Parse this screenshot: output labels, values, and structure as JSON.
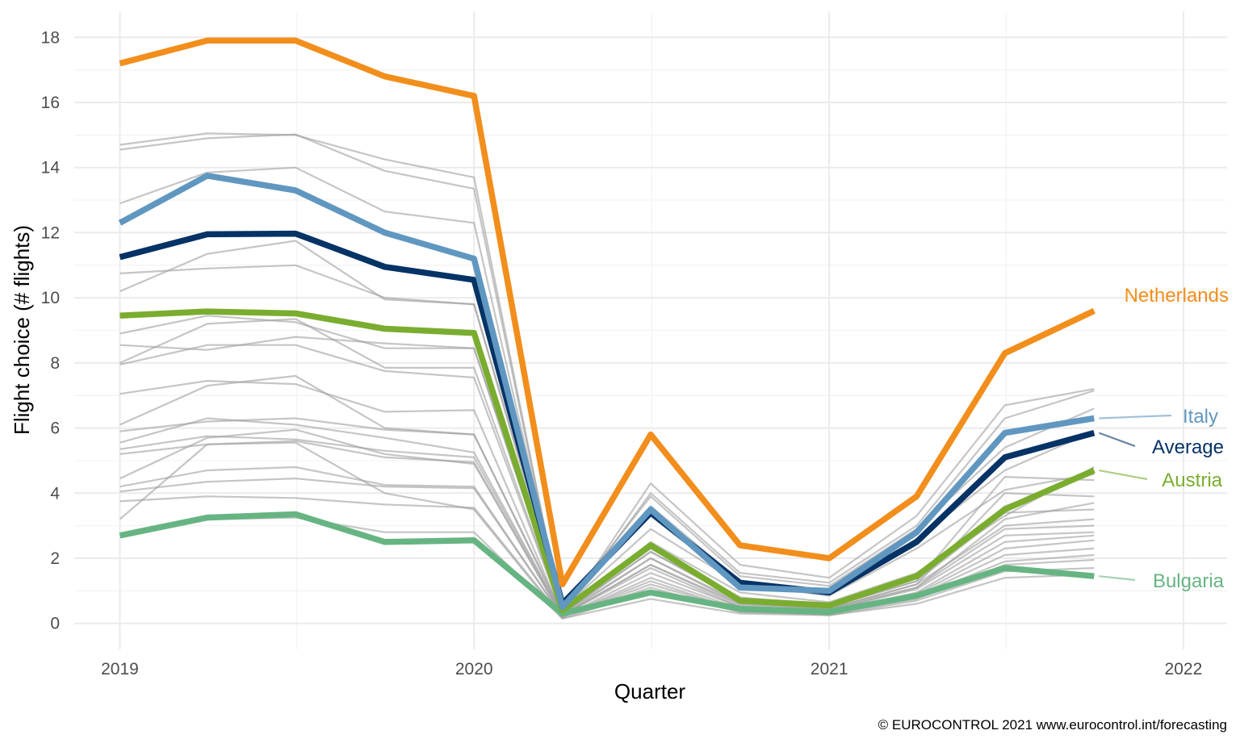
{
  "chart_data": {
    "type": "line",
    "xlabel": "Quarter",
    "ylabel": "Flight choice (# flights)",
    "caption": "© EUROCONTROL 2021 www.eurocontrol.int/forecasting",
    "x": [
      "2019-Q1",
      "2019-Q2",
      "2019-Q3",
      "2019-Q4",
      "2020-Q1",
      "2020-Q2",
      "2020-Q3",
      "2020-Q4",
      "2021-Q1",
      "2021-Q2",
      "2021-Q3",
      "2021-Q4"
    ],
    "xlim": [
      "2018-11-15",
      "2022-02-15"
    ],
    "x_ticks": [
      {
        "label": "2019",
        "date": "2019-01-01"
      },
      {
        "label": "2020",
        "date": "2020-01-01"
      },
      {
        "label": "2021",
        "date": "2021-01-01"
      },
      {
        "label": "2022",
        "date": "2022-01-01"
      }
    ],
    "ylim": [
      -0.8,
      18.8
    ],
    "y_ticks": [
      0,
      2,
      4,
      6,
      8,
      10,
      12,
      14,
      16,
      18
    ],
    "grid": true,
    "highlighted": [
      {
        "name": "Netherlands",
        "color": "#f28e1c",
        "values": [
          17.2,
          17.9,
          17.9,
          16.8,
          16.2,
          1.2,
          5.8,
          2.4,
          2.0,
          3.9,
          8.3,
          9.6
        ]
      },
      {
        "name": "Italy",
        "color": "#6097c0",
        "values": [
          12.3,
          13.75,
          13.3,
          12.0,
          11.2,
          0.5,
          3.5,
          1.1,
          1.0,
          2.8,
          5.85,
          6.3
        ]
      },
      {
        "name": "Average",
        "color": "#063366",
        "values": [
          11.25,
          11.95,
          11.97,
          10.95,
          10.55,
          0.6,
          3.4,
          1.25,
          0.95,
          2.5,
          5.1,
          5.85
        ]
      },
      {
        "name": "Austria",
        "color": "#7aad2f",
        "values": [
          9.45,
          9.58,
          9.52,
          9.05,
          8.92,
          0.4,
          2.4,
          0.7,
          0.55,
          1.45,
          3.5,
          4.7
        ]
      },
      {
        "name": "Bulgaria",
        "color": "#67b483",
        "values": [
          2.7,
          3.25,
          3.35,
          2.5,
          2.55,
          0.3,
          0.95,
          0.45,
          0.35,
          0.85,
          1.7,
          1.45
        ]
      }
    ],
    "background_series_color": "#9e9e9e",
    "background_series": [
      [
        14.7,
        15.05,
        15.0,
        14.25,
        13.7,
        0.25,
        4.3,
        1.8,
        1.4,
        3.3,
        6.7,
        7.2
      ],
      [
        14.55,
        14.9,
        15.02,
        13.9,
        13.35,
        0.3,
        4.0,
        1.55,
        1.25,
        3.0,
        6.3,
        7.15
      ],
      [
        12.9,
        13.85,
        14.0,
        12.65,
        12.3,
        0.45,
        3.9,
        1.45,
        1.15,
        2.9,
        5.4,
        6.6
      ],
      [
        10.75,
        10.9,
        11.0,
        10.0,
        9.8,
        0.6,
        3.6,
        1.3,
        0.95,
        2.6,
        4.7,
        5.9
      ],
      [
        10.2,
        11.35,
        11.75,
        9.95,
        9.8,
        0.45,
        2.9,
        1.2,
        0.85,
        2.3,
        4.1,
        4.6
      ],
      [
        8.9,
        9.45,
        9.25,
        8.45,
        8.45,
        0.35,
        2.5,
        0.95,
        0.65,
        1.55,
        3.3,
        4.8
      ],
      [
        8.55,
        8.4,
        8.8,
        8.6,
        8.45,
        0.35,
        2.3,
        0.8,
        0.55,
        1.4,
        3.6,
        4.6
      ],
      [
        8.0,
        9.2,
        9.35,
        7.85,
        7.85,
        0.3,
        2.2,
        0.75,
        0.5,
        1.3,
        4.5,
        4.4
      ],
      [
        7.95,
        8.55,
        8.55,
        7.75,
        7.55,
        0.3,
        2.0,
        0.65,
        0.45,
        1.2,
        4.0,
        3.9
      ],
      [
        7.05,
        7.45,
        7.35,
        6.5,
        6.55,
        0.25,
        1.8,
        0.6,
        0.45,
        1.1,
        3.2,
        3.7
      ],
      [
        6.1,
        7.3,
        7.6,
        6.0,
        5.8,
        0.3,
        2.2,
        0.7,
        0.5,
        1.3,
        3.4,
        3.5
      ],
      [
        5.9,
        6.2,
        6.3,
        5.95,
        5.8,
        0.25,
        2.0,
        0.6,
        0.45,
        1.2,
        3.0,
        3.2
      ],
      [
        5.55,
        6.3,
        6.1,
        5.7,
        5.25,
        0.25,
        1.8,
        0.55,
        0.4,
        1.1,
        2.9,
        3.0
      ],
      [
        5.35,
        5.75,
        5.65,
        5.3,
        5.1,
        0.25,
        1.7,
        0.5,
        0.4,
        1.05,
        2.7,
        2.8
      ],
      [
        5.2,
        5.5,
        5.6,
        5.1,
        4.95,
        0.2,
        1.55,
        0.5,
        0.35,
        0.95,
        2.5,
        2.7
      ],
      [
        4.45,
        5.7,
        5.95,
        5.2,
        4.9,
        0.2,
        1.4,
        0.45,
        0.35,
        0.9,
        2.3,
        2.55
      ],
      [
        4.2,
        4.7,
        4.8,
        4.25,
        4.2,
        0.2,
        1.3,
        0.4,
        0.3,
        0.85,
        2.1,
        2.3
      ],
      [
        4.05,
        4.35,
        4.45,
        4.2,
        4.15,
        0.2,
        1.2,
        0.4,
        0.3,
        0.8,
        1.9,
        2.1
      ],
      [
        3.75,
        3.9,
        3.85,
        3.65,
        3.55,
        0.2,
        1.1,
        0.35,
        0.3,
        0.75,
        1.8,
        1.95
      ],
      [
        3.2,
        5.5,
        5.55,
        4.0,
        3.5,
        0.15,
        1.0,
        0.35,
        0.25,
        0.7,
        1.6,
        1.7
      ],
      [
        2.75,
        3.2,
        3.25,
        2.8,
        2.8,
        0.15,
        0.75,
        0.3,
        0.25,
        0.6,
        1.4,
        1.5
      ]
    ]
  }
}
